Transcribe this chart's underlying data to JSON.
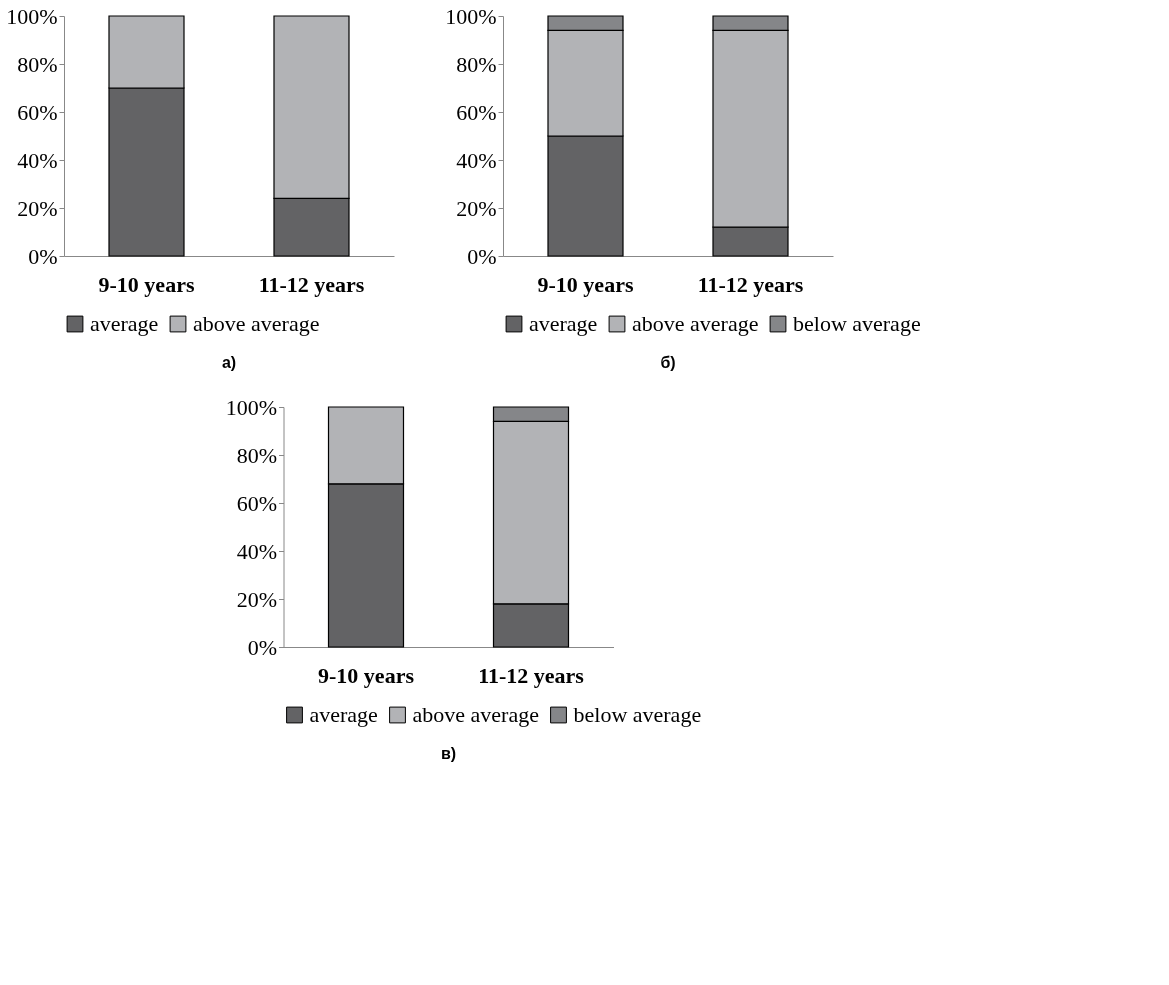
{
  "chart_data": [
    {
      "type": "bar",
      "title": "а)",
      "stacked": true,
      "categories": [
        "9-10 years",
        "11-12 years"
      ],
      "ylim": [
        0,
        100
      ],
      "yticks": [
        {
          "value": 0,
          "label": "0%"
        },
        {
          "value": 20,
          "label": "20%"
        },
        {
          "value": 40,
          "label": "40%"
        },
        {
          "value": 60,
          "label": "60%"
        },
        {
          "value": 80,
          "label": "80%"
        },
        {
          "value": 100,
          "label": "100%"
        }
      ],
      "grid": false,
      "legend": "bottom",
      "series": [
        {
          "name": "average",
          "color": "#636365",
          "values": [
            70,
            24
          ]
        },
        {
          "name": "above average",
          "color": "#b2b3b6",
          "values": [
            30,
            76
          ]
        }
      ]
    },
    {
      "type": "bar",
      "title": "б)",
      "stacked": true,
      "categories": [
        "9-10 years",
        "11-12 years"
      ],
      "ylim": [
        0,
        100
      ],
      "yticks": [
        {
          "value": 0,
          "label": "0%"
        },
        {
          "value": 20,
          "label": "20%"
        },
        {
          "value": 40,
          "label": "40%"
        },
        {
          "value": 60,
          "label": "60%"
        },
        {
          "value": 80,
          "label": "80%"
        },
        {
          "value": 100,
          "label": "100%"
        }
      ],
      "grid": false,
      "legend": "bottom",
      "series": [
        {
          "name": "average",
          "color": "#636365",
          "values": [
            50,
            12
          ]
        },
        {
          "name": "above average",
          "color": "#b2b3b6",
          "values": [
            44,
            82
          ]
        },
        {
          "name": "below average",
          "color": "#858689",
          "values": [
            6,
            6
          ]
        }
      ]
    },
    {
      "type": "bar",
      "title": "в)",
      "stacked": true,
      "categories": [
        "9-10 years",
        "11-12 years"
      ],
      "ylim": [
        0,
        100
      ],
      "yticks": [
        {
          "value": 0,
          "label": "0%"
        },
        {
          "value": 20,
          "label": "20%"
        },
        {
          "value": 40,
          "label": "40%"
        },
        {
          "value": 60,
          "label": "60%"
        },
        {
          "value": 80,
          "label": "80%"
        },
        {
          "value": 100,
          "label": "100%"
        }
      ],
      "grid": false,
      "legend": "bottom",
      "series": [
        {
          "name": "average",
          "color": "#636365",
          "values": [
            68,
            18
          ]
        },
        {
          "name": "above average",
          "color": "#b2b3b6",
          "values": [
            32,
            76
          ]
        },
        {
          "name": "below average",
          "color": "#858689",
          "values": [
            null,
            6
          ]
        }
      ]
    }
  ]
}
